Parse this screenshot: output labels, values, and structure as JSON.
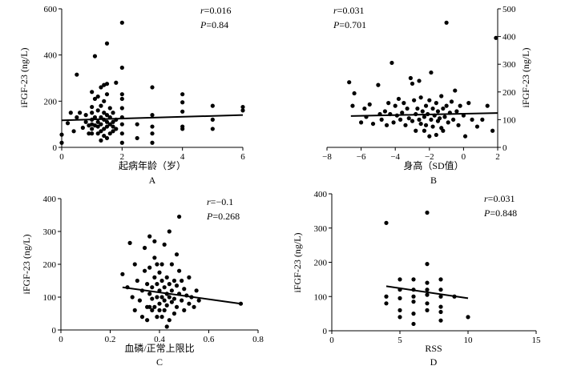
{
  "chart_data": [
    {
      "type": "scatter",
      "panel_label": "A",
      "xlabel": "起病年龄（岁）",
      "ylabel": "iFGF-23 (ng/L)",
      "x_ticks": [
        0,
        2,
        4,
        6
      ],
      "y_ticks": [
        0,
        200,
        400,
        600
      ],
      "xlim": [
        0,
        6
      ],
      "ylim": [
        0,
        600
      ],
      "r_text": "r=0.016",
      "p_text": "P=0.84",
      "fit": {
        "x": [
          0,
          6
        ],
        "y": [
          117,
          140
        ]
      },
      "points": [
        [
          0,
          20
        ],
        [
          0,
          55
        ],
        [
          0.2,
          105
        ],
        [
          0.3,
          150
        ],
        [
          0.4,
          70
        ],
        [
          0.5,
          315
        ],
        [
          0.5,
          130
        ],
        [
          0.6,
          150
        ],
        [
          0.7,
          85
        ],
        [
          0.8,
          110
        ],
        [
          0.8,
          140
        ],
        [
          0.9,
          60
        ],
        [
          0.9,
          95
        ],
        [
          1.0,
          60
        ],
        [
          1.0,
          80
        ],
        [
          1.0,
          100
        ],
        [
          1.0,
          120
        ],
        [
          1.0,
          150
        ],
        [
          1.0,
          175
        ],
        [
          1.0,
          240
        ],
        [
          1.1,
          95
        ],
        [
          1.1,
          130
        ],
        [
          1.1,
          210
        ],
        [
          1.1,
          395
        ],
        [
          1.2,
          60
        ],
        [
          1.2,
          90
        ],
        [
          1.2,
          110
        ],
        [
          1.2,
          160
        ],
        [
          1.2,
          220
        ],
        [
          1.3,
          30
        ],
        [
          1.3,
          70
        ],
        [
          1.3,
          100
        ],
        [
          1.3,
          130
        ],
        [
          1.3,
          180
        ],
        [
          1.3,
          260
        ],
        [
          1.4,
          50
        ],
        [
          1.4,
          80
        ],
        [
          1.4,
          120
        ],
        [
          1.4,
          150
        ],
        [
          1.4,
          200
        ],
        [
          1.4,
          270
        ],
        [
          1.5,
          40
        ],
        [
          1.5,
          90
        ],
        [
          1.5,
          110
        ],
        [
          1.5,
          140
        ],
        [
          1.5,
          230
        ],
        [
          1.5,
          275
        ],
        [
          1.5,
          450
        ],
        [
          1.6,
          60
        ],
        [
          1.6,
          100
        ],
        [
          1.6,
          130
        ],
        [
          1.6,
          170
        ],
        [
          1.7,
          70
        ],
        [
          1.7,
          90
        ],
        [
          1.7,
          110
        ],
        [
          1.7,
          150
        ],
        [
          1.8,
          80
        ],
        [
          1.8,
          120
        ],
        [
          1.8,
          280
        ],
        [
          2.0,
          20
        ],
        [
          2.0,
          60
        ],
        [
          2.0,
          100
        ],
        [
          2.0,
          130
        ],
        [
          2.0,
          170
        ],
        [
          2.0,
          210
        ],
        [
          2.0,
          230
        ],
        [
          2.0,
          345
        ],
        [
          2.0,
          540
        ],
        [
          2.5,
          40
        ],
        [
          2.5,
          100
        ],
        [
          3.0,
          20
        ],
        [
          3.0,
          60
        ],
        [
          3.0,
          90
        ],
        [
          3.0,
          140
        ],
        [
          3.0,
          260
        ],
        [
          4.0,
          80
        ],
        [
          4.0,
          90
        ],
        [
          4.0,
          155
        ],
        [
          4.0,
          195
        ],
        [
          4.0,
          230
        ],
        [
          5.0,
          80
        ],
        [
          5.0,
          120
        ],
        [
          5.0,
          180
        ],
        [
          6.0,
          160
        ],
        [
          6.0,
          175
        ]
      ]
    },
    {
      "type": "scatter",
      "panel_label": "B",
      "xlabel": "身高（SD值）",
      "ylabel": "iFGF-23 (ng/L)",
      "x_ticks": [
        -8,
        -6,
        -4,
        -2,
        0,
        2
      ],
      "y_ticks": [
        0,
        100,
        200,
        300,
        400,
        500
      ],
      "xlim": [
        -8,
        2
      ],
      "ylim": [
        0,
        500
      ],
      "r_text": "r=0.031",
      "p_text": "P=0.701",
      "fit": {
        "x": [
          -6.6,
          2
        ],
        "y": [
          113,
          124
        ]
      },
      "points": [
        [
          -6.7,
          235
        ],
        [
          -6.5,
          150
        ],
        [
          -6.4,
          195
        ],
        [
          -6.0,
          90
        ],
        [
          -5.8,
          140
        ],
        [
          -5.7,
          110
        ],
        [
          -5.5,
          155
        ],
        [
          -5.3,
          85
        ],
        [
          -5.0,
          225
        ],
        [
          -4.9,
          120
        ],
        [
          -4.8,
          100
        ],
        [
          -4.6,
          130
        ],
        [
          -4.5,
          80
        ],
        [
          -4.4,
          160
        ],
        [
          -4.3,
          120
        ],
        [
          -4.2,
          305
        ],
        [
          -4.1,
          90
        ],
        [
          -4.0,
          150
        ],
        [
          -3.9,
          115
        ],
        [
          -3.8,
          175
        ],
        [
          -3.7,
          100
        ],
        [
          -3.6,
          125
        ],
        [
          -3.5,
          160
        ],
        [
          -3.4,
          80
        ],
        [
          -3.3,
          140
        ],
        [
          -3.2,
          105
        ],
        [
          -3.1,
          250
        ],
        [
          -3.0,
          230
        ],
        [
          -3.0,
          95
        ],
        [
          -2.9,
          170
        ],
        [
          -2.8,
          120
        ],
        [
          -2.8,
          60
        ],
        [
          -2.7,
          140
        ],
        [
          -2.6,
          100
        ],
        [
          -2.6,
          240
        ],
        [
          -2.5,
          85
        ],
        [
          -2.5,
          180
        ],
        [
          -2.4,
          130
        ],
        [
          -2.3,
          110
        ],
        [
          -2.3,
          60
        ],
        [
          -2.2,
          150
        ],
        [
          -2.2,
          80
        ],
        [
          -2.1,
          120
        ],
        [
          -2.0,
          170
        ],
        [
          -2.0,
          40
        ],
        [
          -1.9,
          100
        ],
        [
          -1.9,
          270
        ],
        [
          -1.8,
          140
        ],
        [
          -1.8,
          75
        ],
        [
          -1.7,
          115
        ],
        [
          -1.6,
          160
        ],
        [
          -1.6,
          45
        ],
        [
          -1.5,
          130
        ],
        [
          -1.5,
          95
        ],
        [
          -1.4,
          105
        ],
        [
          -1.3,
          70
        ],
        [
          -1.3,
          185
        ],
        [
          -1.2,
          140
        ],
        [
          -1.2,
          60
        ],
        [
          -1.1,
          110
        ],
        [
          -1.0,
          450
        ],
        [
          -1.0,
          150
        ],
        [
          -0.9,
          90
        ],
        [
          -0.8,
          125
        ],
        [
          -0.7,
          165
        ],
        [
          -0.6,
          100
        ],
        [
          -0.5,
          205
        ],
        [
          -0.4,
          130
        ],
        [
          -0.3,
          80
        ],
        [
          -0.2,
          150
        ],
        [
          0.0,
          115
        ],
        [
          0.1,
          40
        ],
        [
          0.3,
          160
        ],
        [
          0.5,
          100
        ],
        [
          0.8,
          75
        ],
        [
          1.1,
          100
        ],
        [
          1.4,
          150
        ],
        [
          1.7,
          60
        ],
        [
          1.9,
          395
        ]
      ]
    },
    {
      "type": "scatter",
      "panel_label": "C",
      "xlabel": "血磷/正常上限比",
      "ylabel": "iFGF-23 (ng/L)",
      "x_ticks": [
        0,
        0.2,
        0.4,
        0.6,
        0.8
      ],
      "y_ticks": [
        0,
        100,
        200,
        300,
        400
      ],
      "xlim": [
        0,
        0.8
      ],
      "ylim": [
        0,
        400
      ],
      "r_text": "r=−0.1",
      "p_text": "P=0.268",
      "fit": {
        "x": [
          0.25,
          0.73
        ],
        "y": [
          130,
          80
        ]
      },
      "points": [
        [
          0.25,
          170
        ],
        [
          0.27,
          130
        ],
        [
          0.28,
          265
        ],
        [
          0.29,
          100
        ],
        [
          0.3,
          200
        ],
        [
          0.3,
          60
        ],
        [
          0.31,
          150
        ],
        [
          0.32,
          90
        ],
        [
          0.33,
          120
        ],
        [
          0.33,
          40
        ],
        [
          0.34,
          180
        ],
        [
          0.34,
          250
        ],
        [
          0.35,
          70
        ],
        [
          0.35,
          140
        ],
        [
          0.35,
          30
        ],
        [
          0.36,
          110
        ],
        [
          0.36,
          285
        ],
        [
          0.36,
          190
        ],
        [
          0.37,
          60
        ],
        [
          0.37,
          130
        ],
        [
          0.37,
          95
        ],
        [
          0.38,
          160
        ],
        [
          0.38,
          70
        ],
        [
          0.38,
          220
        ],
        [
          0.38,
          270
        ],
        [
          0.39,
          100
        ],
        [
          0.39,
          140
        ],
        [
          0.39,
          40
        ],
        [
          0.4,
          80
        ],
        [
          0.4,
          120
        ],
        [
          0.4,
          175
        ],
        [
          0.4,
          60
        ],
        [
          0.41,
          150
        ],
        [
          0.41,
          100
        ],
        [
          0.41,
          200
        ],
        [
          0.42,
          90
        ],
        [
          0.42,
          130
        ],
        [
          0.42,
          60
        ],
        [
          0.42,
          260
        ],
        [
          0.43,
          110
        ],
        [
          0.43,
          160
        ],
        [
          0.43,
          75
        ],
        [
          0.44,
          140
        ],
        [
          0.44,
          100
        ],
        [
          0.44,
          30
        ],
        [
          0.45,
          200
        ],
        [
          0.45,
          120
        ],
        [
          0.45,
          85
        ],
        [
          0.46,
          150
        ],
        [
          0.46,
          95
        ],
        [
          0.46,
          50
        ],
        [
          0.47,
          135
        ],
        [
          0.47,
          70
        ],
        [
          0.48,
          180
        ],
        [
          0.48,
          110
        ],
        [
          0.48,
          345
        ],
        [
          0.49,
          90
        ],
        [
          0.49,
          150
        ],
        [
          0.5,
          60
        ],
        [
          0.5,
          125
        ],
        [
          0.51,
          105
        ],
        [
          0.52,
          80
        ],
        [
          0.52,
          160
        ],
        [
          0.53,
          100
        ],
        [
          0.54,
          70
        ],
        [
          0.55,
          120
        ],
        [
          0.56,
          90
        ],
        [
          0.73,
          80
        ],
        [
          0.44,
          300
        ],
        [
          0.43,
          10
        ],
        [
          0.47,
          230
        ],
        [
          0.39,
          200
        ],
        [
          0.41,
          40
        ],
        [
          0.36,
          70
        ]
      ]
    },
    {
      "type": "scatter",
      "panel_label": "D",
      "xlabel": "RSS",
      "ylabel": "iFGF-23 (ng/L)",
      "x_ticks": [
        0,
        5,
        10,
        15
      ],
      "y_ticks": [
        0,
        100,
        200,
        300,
        400
      ],
      "xlim": [
        0,
        15
      ],
      "ylim": [
        0,
        400
      ],
      "r_text": "r=0.031",
      "p_text": "P=0.848",
      "fit": {
        "x": [
          4,
          10
        ],
        "y": [
          130,
          95
        ]
      },
      "points": [
        [
          4,
          315
        ],
        [
          4,
          100
        ],
        [
          4,
          80
        ],
        [
          5,
          150
        ],
        [
          5,
          120
        ],
        [
          5,
          95
        ],
        [
          5,
          60
        ],
        [
          5,
          40
        ],
        [
          6,
          150
        ],
        [
          6,
          120
        ],
        [
          6,
          100
        ],
        [
          6,
          85
        ],
        [
          6,
          50
        ],
        [
          6,
          20
        ],
        [
          7,
          345
        ],
        [
          7,
          195
        ],
        [
          7,
          140
        ],
        [
          7,
          120
        ],
        [
          7,
          105
        ],
        [
          7,
          80
        ],
        [
          7,
          60
        ],
        [
          8,
          150
        ],
        [
          8,
          120
        ],
        [
          8,
          100
        ],
        [
          8,
          70
        ],
        [
          8,
          55
        ],
        [
          8,
          30
        ],
        [
          9,
          100
        ],
        [
          10,
          40
        ]
      ]
    }
  ]
}
